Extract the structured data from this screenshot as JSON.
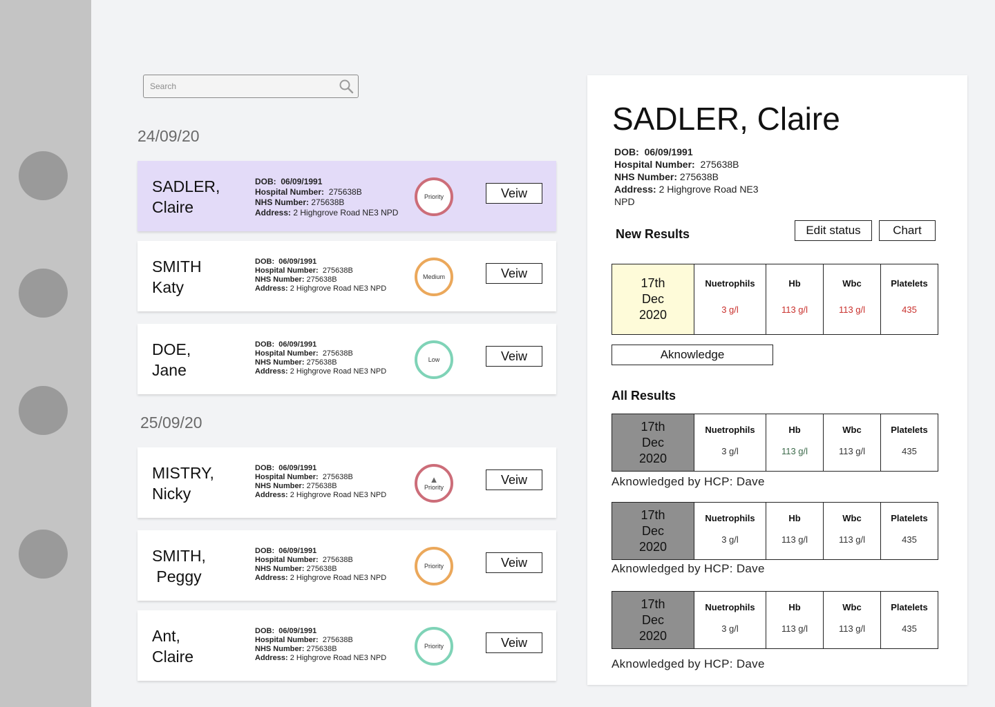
{
  "nav": {
    "icons": [
      "nav-item-1",
      "nav-item-2",
      "nav-item-3",
      "nav-item-4"
    ]
  },
  "search": {
    "placeholder": "Search",
    "icon": "search-icon"
  },
  "dates": [
    "24/09/20",
    "25/09/20"
  ],
  "labels": {
    "dob": "DOB:",
    "hospital": "Hospital Number:",
    "nhs": "NHS Number:",
    "address": "Address:"
  },
  "patients": [
    {
      "name_line1": "SADLER,",
      "name_line2": "Claire",
      "dob": "06/09/1991",
      "hospital_number": "275638B",
      "nhs_number": "275638B",
      "address": "2 Highgrove Road NE3 NPD",
      "status": "Priority",
      "status_color": "#cc6d79",
      "view_label": "Veiw"
    },
    {
      "name_line1": "SMITH",
      "name_line2": "Katy",
      "dob": "06/09/1991",
      "hospital_number": "275638B",
      "nhs_number": "275638B",
      "address": "2 Highgrove Road NE3 NPD",
      "status": "Medium",
      "status_color": "#eba85b",
      "view_label": "Veiw"
    },
    {
      "name_line1": "DOE,",
      "name_line2": "Jane",
      "dob": "06/09/1991",
      "hospital_number": "275638B",
      "nhs_number": "275638B",
      "address": "2 Highgrove Road NE3 NPD",
      "status": "Low",
      "status_color": "#7fd3b7",
      "view_label": "Veiw"
    },
    {
      "name_line1": "MISTRY,",
      "name_line2": "Nicky",
      "dob": "06/09/1991",
      "hospital_number": "275638B",
      "nhs_number": "275638B",
      "address": "2 Highgrove Road NE3 NPD",
      "status": "Priority",
      "status_color": "#cc6d79",
      "status_icon": "warning-icon",
      "view_label": "Veiw"
    },
    {
      "name_line1": "SMITH,",
      "name_line2": " Peggy",
      "dob": "06/09/1991",
      "hospital_number": "275638B",
      "nhs_number": "275638B",
      "address": "2 Highgrove Road NE3 NPD",
      "status": "Priority",
      "status_color": "#eba85b",
      "view_label": "Veiw"
    },
    {
      "name_line1": "Ant,",
      "name_line2": "Claire",
      "dob": "06/09/1991",
      "hospital_number": "275638B",
      "nhs_number": "275638B",
      "address": "2 Highgrove Road NE3 NPD",
      "status": "Priority",
      "status_color": "#7fd3b7",
      "view_label": "Veiw"
    }
  ],
  "detail": {
    "name": "SADLER, Claire",
    "dob": "06/09/1991",
    "hospital_number": "275638B",
    "nhs_number": "275638B",
    "address_line1": "2 Highgrove Road NE3",
    "address_line2": "NPD",
    "new_results_title": "New Results",
    "edit_status_label": "Edit status",
    "chart_label": "Chart",
    "acknowledge_label": "Aknowledge",
    "all_results_title": "All Results",
    "columns": [
      "Nuetrophils",
      "Hb",
      "Wbc",
      "Platelets"
    ],
    "new_result": {
      "date_line1": "17th",
      "date_line2": "Dec",
      "date_line3": "2020",
      "values": [
        "3 g/l",
        "113 g/l",
        "113 g/l",
        "435"
      ],
      "date_bg": "#fefbd9",
      "value_color": "#c9302c"
    },
    "all_results": [
      {
        "date_line1": "17th",
        "date_line2": "Dec",
        "date_line3": "2020",
        "values": [
          "3 g/l",
          "113 g/l",
          "113 g/l",
          "435"
        ],
        "ack": "Aknowledged by HCP: Dave"
      },
      {
        "date_line1": "17th",
        "date_line2": "Dec",
        "date_line3": "2020",
        "values": [
          "3 g/l",
          "113 g/l",
          "113 g/l",
          "435"
        ],
        "ack": "Aknowledged by HCP: Dave"
      },
      {
        "date_line1": "17th",
        "date_line2": "Dec",
        "date_line3": "2020",
        "values": [
          "3 g/l",
          "113 g/l",
          "113 g/l",
          "435"
        ],
        "ack": "Aknowledged by HCP: Dave"
      }
    ]
  },
  "colors": {
    "selected_card": "#e3dbf8",
    "sidebar": "#c4c4c4",
    "old_date_bg": "#8f8f8f"
  }
}
